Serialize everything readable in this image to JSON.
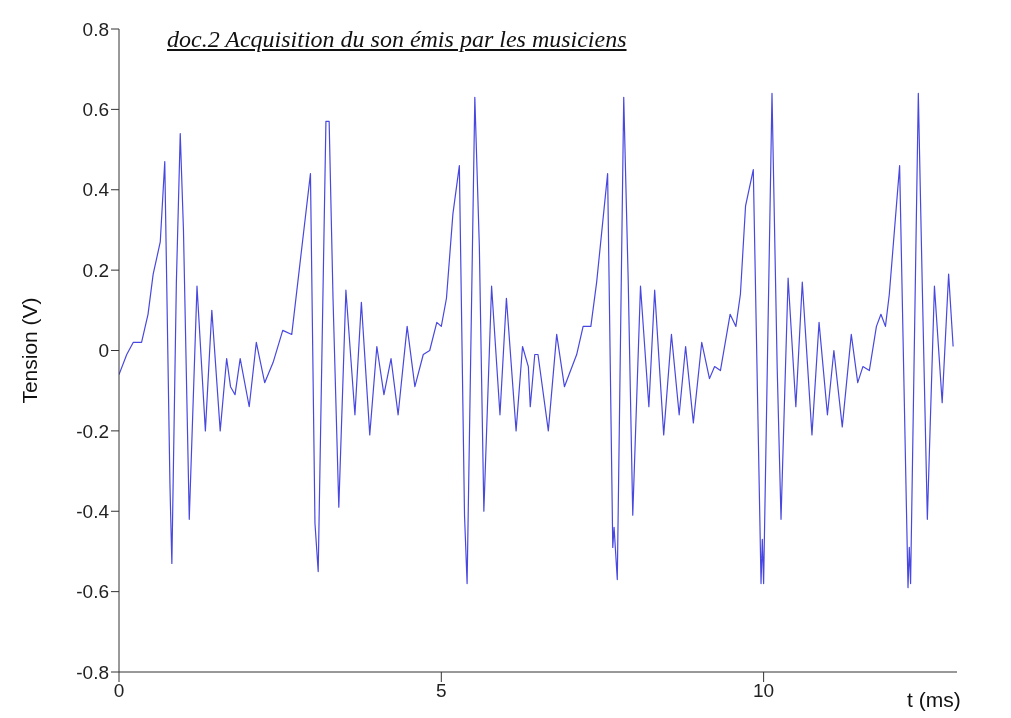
{
  "chart_data": {
    "type": "line",
    "title": "doc.2 Acquisition du son émis par les musiciens",
    "xlabel": "t (ms)",
    "ylabel": "Tension (V)",
    "xlim": [
      0,
      13
    ],
    "xticks": [
      0,
      5,
      10
    ],
    "ylim": [
      -0.8,
      0.8
    ],
    "yticks": [
      -0.8,
      -0.6,
      -0.4,
      -0.2,
      0,
      0.2,
      0.4,
      0.6,
      0.8
    ],
    "grid": false,
    "marker": "none",
    "line_style": "solid",
    "series": [
      {
        "color": "#4848e0",
        "x": [
          0.0,
          0.12,
          0.22,
          0.35,
          0.45,
          0.53,
          0.64,
          0.71,
          0.79,
          0.8,
          0.82,
          0.89,
          0.95,
          1.0,
          1.09,
          1.21,
          1.34,
          1.44,
          1.57,
          1.67,
          1.73,
          1.8,
          1.88,
          2.02,
          2.13,
          2.26,
          2.39,
          2.54,
          2.68,
          2.81,
          2.97,
          3.04,
          3.09,
          3.21,
          3.26,
          3.32,
          3.41,
          3.52,
          3.66,
          3.76,
          3.89,
          4.0,
          4.11,
          4.22,
          4.33,
          4.47,
          4.59,
          4.72,
          4.82,
          4.93,
          5.0,
          5.08,
          5.18,
          5.28,
          5.36,
          5.4,
          5.52,
          5.59,
          5.66,
          5.78,
          5.91,
          6.01,
          6.16,
          6.26,
          6.35,
          6.38,
          6.45,
          6.5,
          6.66,
          6.79,
          6.91,
          7.1,
          7.2,
          7.32,
          7.41,
          7.58,
          7.66,
          7.68,
          7.73,
          7.83,
          7.9,
          7.97,
          8.09,
          8.22,
          8.31,
          8.45,
          8.57,
          8.69,
          8.79,
          8.91,
          9.04,
          9.16,
          9.24,
          9.33,
          9.48,
          9.57,
          9.64,
          9.72,
          9.84,
          9.96,
          9.98,
          10.0,
          10.13,
          10.21,
          10.27,
          10.38,
          10.5,
          10.6,
          10.75,
          10.86,
          10.99,
          11.09,
          11.22,
          11.36,
          11.46,
          11.54,
          11.64,
          11.75,
          11.82,
          11.89,
          11.95,
          12.11,
          12.24,
          12.26,
          12.28,
          12.4,
          12.46,
          12.54,
          12.65,
          12.77,
          12.87,
          12.94
        ],
        "values": [
          -0.06,
          -0.01,
          0.02,
          0.02,
          0.09,
          0.19,
          0.27,
          0.47,
          -0.33,
          -0.4,
          -0.53,
          0.17,
          0.54,
          0.3,
          -0.42,
          0.16,
          -0.2,
          0.1,
          -0.2,
          -0.02,
          -0.09,
          -0.11,
          -0.02,
          -0.14,
          0.02,
          -0.08,
          -0.03,
          0.05,
          0.04,
          0.22,
          0.44,
          -0.43,
          -0.55,
          0.57,
          0.57,
          0.13,
          -0.39,
          0.15,
          -0.16,
          0.12,
          -0.21,
          0.01,
          -0.11,
          -0.02,
          -0.16,
          0.06,
          -0.09,
          -0.01,
          0.0,
          0.07,
          0.06,
          0.13,
          0.34,
          0.46,
          -0.41,
          -0.58,
          0.63,
          0.26,
          -0.4,
          0.16,
          -0.16,
          0.13,
          -0.2,
          0.01,
          -0.04,
          -0.14,
          -0.01,
          -0.01,
          -0.2,
          0.04,
          -0.09,
          -0.01,
          0.06,
          0.06,
          0.17,
          0.44,
          -0.49,
          -0.44,
          -0.57,
          0.63,
          0.17,
          -0.41,
          0.16,
          -0.14,
          0.15,
          -0.21,
          0.04,
          -0.16,
          0.01,
          -0.18,
          0.02,
          -0.07,
          -0.04,
          -0.05,
          0.09,
          0.06,
          0.14,
          0.36,
          0.45,
          -0.58,
          -0.47,
          -0.58,
          0.64,
          -0.04,
          -0.42,
          0.18,
          -0.14,
          0.17,
          -0.21,
          0.07,
          -0.16,
          0.0,
          -0.19,
          0.04,
          -0.08,
          -0.04,
          -0.05,
          0.06,
          0.09,
          0.06,
          0.14,
          0.46,
          -0.59,
          -0.49,
          -0.58,
          0.64,
          0.17,
          -0.42,
          0.16,
          -0.13,
          0.19,
          0.01
        ]
      }
    ]
  }
}
